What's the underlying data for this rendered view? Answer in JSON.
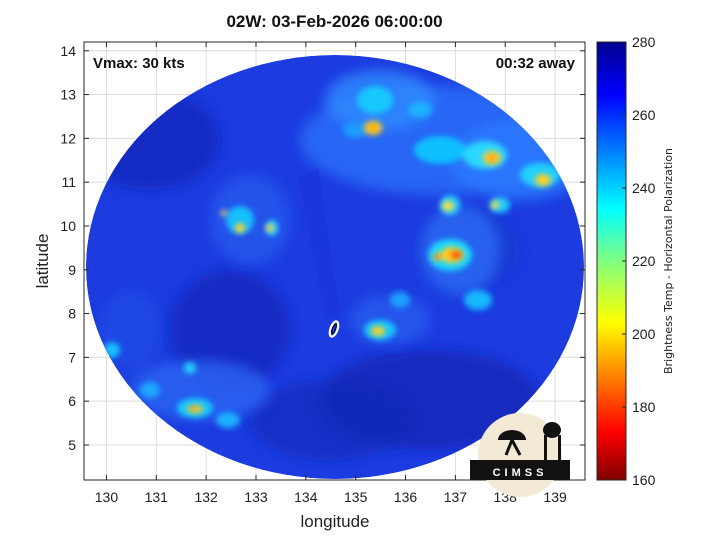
{
  "title": "02W: 03-Feb-2026 06:00:00",
  "vmax_label": "Vmax: 30 kts",
  "time_away_label": "00:32 away",
  "xlabel": "longitude",
  "ylabel": "latitude",
  "xticks": [
    "130",
    "131",
    "132",
    "133",
    "134",
    "135",
    "136",
    "137",
    "138",
    "139"
  ],
  "yticks": [
    "5",
    "6",
    "7",
    "8",
    "9",
    "10",
    "11",
    "12",
    "13",
    "14"
  ],
  "colorbar": {
    "label": "Brightness Temp - Horizontal Polarization",
    "ticks": [
      "160",
      "180",
      "200",
      "220",
      "240",
      "260",
      "280"
    ],
    "min": 160,
    "max": 280,
    "colormap": "jet"
  },
  "logo": {
    "text": "CIMSS"
  },
  "map_extent": {
    "lon": [
      129.55,
      139.6
    ],
    "lat": [
      4.2,
      14.2
    ]
  },
  "storm_center": {
    "lon": 134.55,
    "lat": 7.5
  },
  "colors": {
    "background_field": "#1c3ce0",
    "deep_blue": "#0a1fb0",
    "light_blue": "#2c7cff"
  }
}
